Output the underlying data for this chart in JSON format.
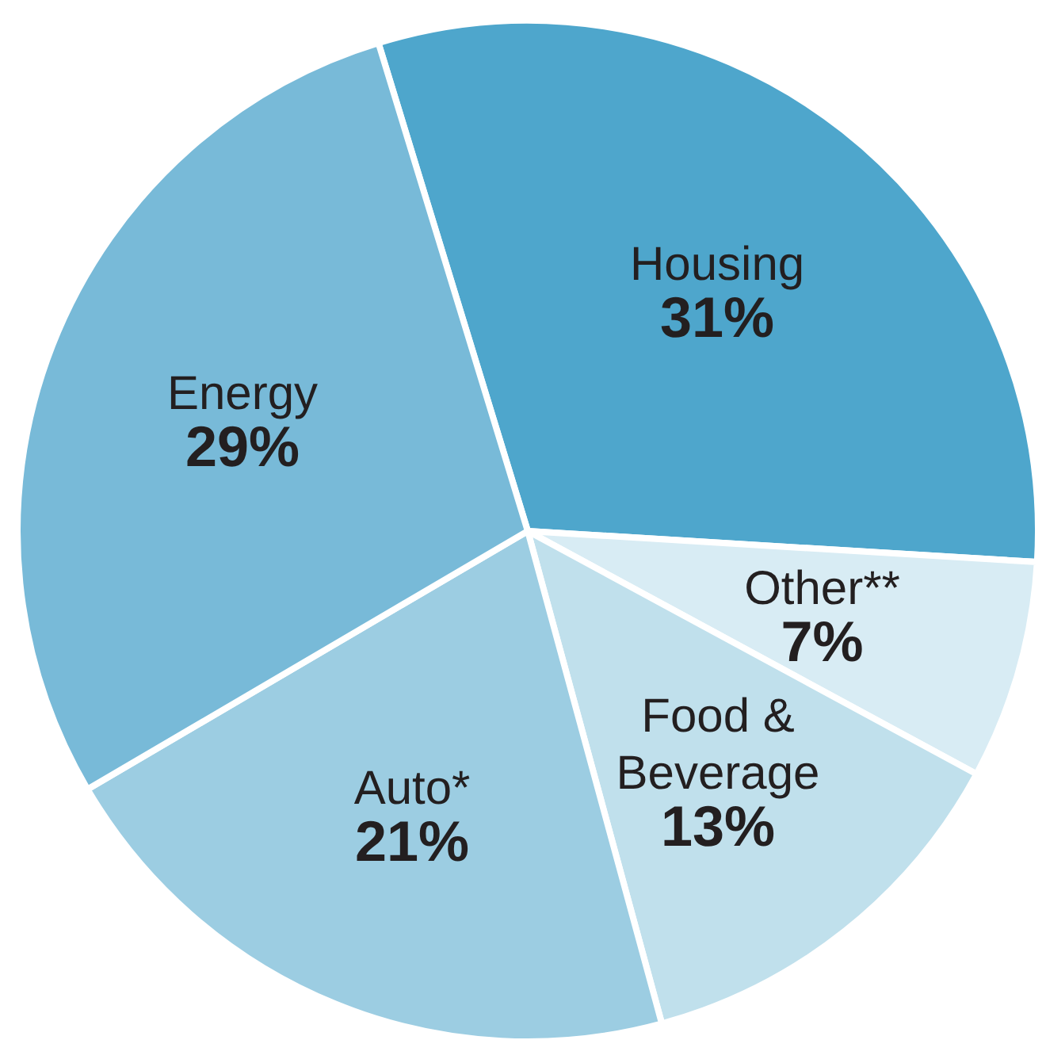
{
  "chart_data": {
    "type": "pie",
    "categories": [
      "Housing",
      "Other**",
      "Food & Beverage",
      "Auto*",
      "Energy"
    ],
    "values": [
      31,
      7,
      13,
      21,
      29
    ],
    "colors": [
      "#4ea6cc",
      "#d8ecf4",
      "#c0e0ec",
      "#9ccde2",
      "#78bad8"
    ],
    "value_labels": [
      "31%",
      "7%",
      "13%",
      "21%",
      "29%"
    ]
  }
}
